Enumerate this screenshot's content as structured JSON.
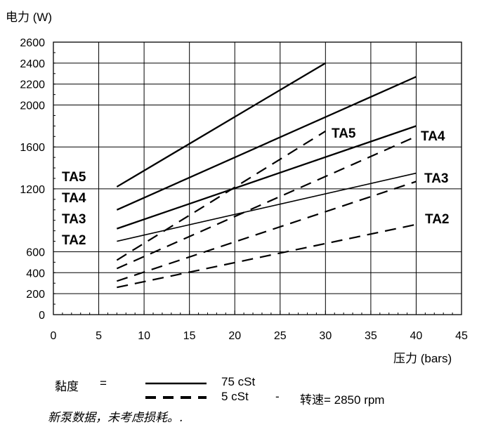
{
  "chart_data": {
    "type": "line",
    "ylabel": "电力 (W)",
    "xlabel": "压力 (bars)",
    "xlim": [
      0,
      45
    ],
    "ylim": [
      0,
      2600
    ],
    "xticks": [
      0,
      5,
      10,
      15,
      20,
      25,
      30,
      35,
      40,
      45
    ],
    "yticks": [
      0,
      200,
      400,
      600,
      1200,
      1600,
      2000,
      2200,
      2400,
      2600
    ],
    "grid": true,
    "series": [
      {
        "name": "TA5",
        "style": "solid",
        "viscosity": "75 cSt",
        "x": [
          7,
          30
        ],
        "y": [
          1220,
          2400
        ]
      },
      {
        "name": "TA4",
        "style": "solid",
        "viscosity": "75 cSt",
        "x": [
          7,
          40
        ],
        "y": [
          1000,
          2270
        ]
      },
      {
        "name": "TA3",
        "style": "solid",
        "viscosity": "75 cSt",
        "x": [
          7,
          40
        ],
        "y": [
          820,
          1800
        ]
      },
      {
        "name": "TA2",
        "style": "solid",
        "viscosity": "75 cSt",
        "x": [
          7,
          40
        ],
        "y": [
          700,
          1350
        ]
      },
      {
        "name": "TA5",
        "style": "dashed",
        "viscosity": "5 cSt",
        "x": [
          7,
          30
        ],
        "y": [
          520,
          1750
        ]
      },
      {
        "name": "TA4",
        "style": "dashed",
        "viscosity": "5 cSt",
        "x": [
          7,
          40
        ],
        "y": [
          440,
          1700
        ]
      },
      {
        "name": "TA3",
        "style": "dashed",
        "viscosity": "5 cSt",
        "x": [
          7,
          40
        ],
        "y": [
          320,
          1270
        ]
      },
      {
        "name": "TA2",
        "style": "dashed",
        "viscosity": "5 cSt",
        "x": [
          7,
          40
        ],
        "y": [
          260,
          860
        ]
      }
    ],
    "left_labels": [
      "TA5",
      "TA4",
      "TA3",
      "TA2"
    ],
    "right_labels_solid_dashed": {
      "TA5": "TA5",
      "TA4": "TA4",
      "TA3": "TA3",
      "TA2": "TA2"
    }
  },
  "legend": {
    "viscosity_label": "黏度",
    "equals": "=",
    "solid_value": "75 cSt",
    "dashed_value": "5 cSt",
    "separator": "-",
    "speed_text": "转速= 2850 rpm"
  },
  "note": "新泵数据，未考虑损耗。."
}
